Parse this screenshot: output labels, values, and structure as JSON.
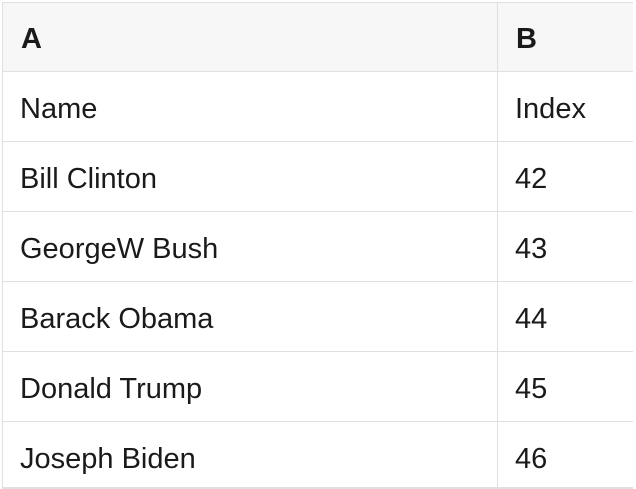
{
  "theme": {
    "page_bg": "#ffffff",
    "row_bg": "#ffffff",
    "header_bg": "#f7f7f7",
    "border": "#e0e0e0",
    "text": "#1a1a1a"
  },
  "table": {
    "column_headers": [
      {
        "label": "A"
      },
      {
        "label": "B"
      }
    ],
    "rows": [
      {
        "a": "Name",
        "b": "Index"
      },
      {
        "a": "Bill Clinton",
        "b": "42"
      },
      {
        "a": "GeorgeW Bush",
        "b": "43"
      },
      {
        "a": "Barack Obama",
        "b": "44"
      },
      {
        "a": "Donald Trump",
        "b": "45"
      },
      {
        "a": "Joseph Biden",
        "b": "46"
      }
    ]
  }
}
